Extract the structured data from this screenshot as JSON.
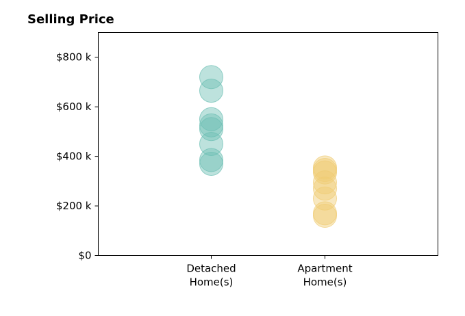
{
  "chart_data": {
    "type": "scatter",
    "title": "Selling Price",
    "xlabel": "",
    "ylabel": "",
    "categories": [
      "Detached\nHome(s)",
      "Apartment\nHome(s)"
    ],
    "ylim": [
      0,
      900000
    ],
    "yticks": [
      0,
      200000,
      400000,
      600000,
      800000
    ],
    "ytick_labels": [
      "$0",
      "$200 k",
      "$400 k",
      "$600 k",
      "$800 k"
    ],
    "grid": false,
    "legend": "none",
    "colors": [
      "#6cbfb3",
      "#f0cc73"
    ],
    "series": [
      {
        "category": "Detached\nHome(s)",
        "values": [
          720000,
          665000,
          550000,
          525000,
          510000,
          450000,
          385000,
          370000
        ]
      },
      {
        "category": "Apartment\nHome(s)",
        "values": [
          355000,
          345000,
          335000,
          295000,
          270000,
          230000,
          170000,
          160000
        ]
      }
    ]
  }
}
